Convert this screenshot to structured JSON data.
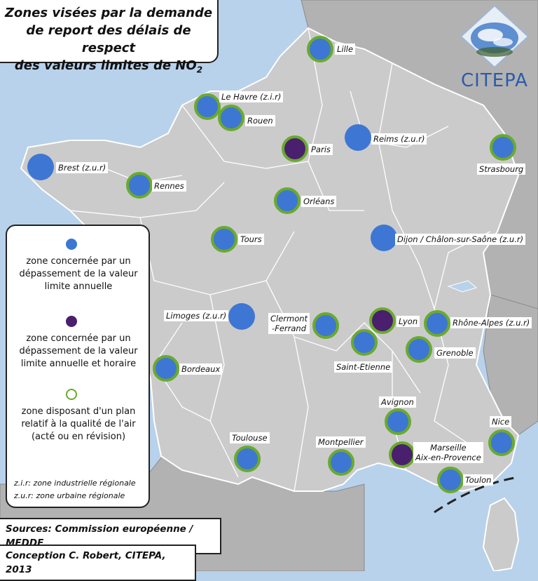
{
  "title": {
    "line1": "Zones visées par la demande",
    "line2": "de report des délais de respect",
    "line3_prefix": "des valeurs limites de NO",
    "line3_sub": "2"
  },
  "logo": {
    "text": "CITEPA"
  },
  "colors": {
    "sea": "#b8d2ec",
    "france": "#cbcbcb",
    "neighbours": "#b2b2b2",
    "blue_zone": "#3d77d3",
    "purple_zone": "#4a1f6e",
    "plan_ring": "#6aaa2c"
  },
  "legend": {
    "annual": "zone concernée par un dépassement de la valeur limite annuelle",
    "annual_hourly": "zone concernée par un dépassement de la valeur limite annuelle et horaire",
    "plan": "zone disposant d'un plan relatif à la qualité de l'air (acté ou en révision)",
    "zir": "z.i.r: zone industrielle régionale",
    "zur": "z.u.r: zone urbaine régionale"
  },
  "footer": {
    "sources": "Sources: Commission européenne / MEDDE",
    "conception": "Conception C. Robert, CITEPA, 2013"
  },
  "zones": [
    {
      "name": "Lille",
      "label": "Lille",
      "type": "annual",
      "plan": true
    },
    {
      "name": "Le Havre",
      "label": "Le Havre (z.i.r)",
      "type": "annual",
      "plan": true
    },
    {
      "name": "Rouen",
      "label": "Rouen",
      "type": "annual",
      "plan": true
    },
    {
      "name": "Paris",
      "label": "Paris",
      "type": "annual_hourly",
      "plan": true
    },
    {
      "name": "Reims",
      "label": "Reims (z.u.r)",
      "type": "annual",
      "plan": false
    },
    {
      "name": "Strasbourg",
      "label": "Strasbourg",
      "type": "annual",
      "plan": true
    },
    {
      "name": "Brest",
      "label": "Brest (z.u.r)",
      "type": "annual",
      "plan": false
    },
    {
      "name": "Rennes",
      "label": "Rennes",
      "type": "annual",
      "plan": true
    },
    {
      "name": "Orléans",
      "label": "Orléans",
      "type": "annual",
      "plan": true
    },
    {
      "name": "Tours",
      "label": "Tours",
      "type": "annual",
      "plan": true
    },
    {
      "name": "Dijon",
      "label": "Dijon / Châlon-sur-Saône (z.u.r)",
      "type": "annual",
      "plan": false
    },
    {
      "name": "Limoges",
      "label": "Limoges (z.u.r)",
      "type": "annual",
      "plan": false
    },
    {
      "name": "Clermont-Ferrand",
      "label1": "Clermont",
      "label2": "-Ferrand",
      "type": "annual",
      "plan": true
    },
    {
      "name": "Lyon",
      "label": "Lyon",
      "type": "annual_hourly",
      "plan": true
    },
    {
      "name": "Rhône-Alpes",
      "label": "Rhône-Alpes (z.u.r)",
      "type": "annual",
      "plan": true
    },
    {
      "name": "Saint-Etienne",
      "label": "Saint-Etienne",
      "type": "annual",
      "plan": true
    },
    {
      "name": "Grenoble",
      "label": "Grenoble",
      "type": "annual",
      "plan": true
    },
    {
      "name": "Bordeaux",
      "label": "Bordeaux",
      "type": "annual",
      "plan": true
    },
    {
      "name": "Avignon",
      "label": "Avignon",
      "type": "annual",
      "plan": true
    },
    {
      "name": "Nice",
      "label": "Nice",
      "type": "annual",
      "plan": true
    },
    {
      "name": "Toulouse",
      "label": "Toulouse",
      "type": "annual",
      "plan": true
    },
    {
      "name": "Montpellier",
      "label": "Montpellier",
      "type": "annual",
      "plan": true
    },
    {
      "name": "Marseille",
      "label1": "Marseille",
      "label2": "Aix-en-Provence",
      "type": "annual_hourly",
      "plan": true
    },
    {
      "name": "Toulon",
      "label": "Toulon",
      "type": "annual",
      "plan": true
    }
  ]
}
